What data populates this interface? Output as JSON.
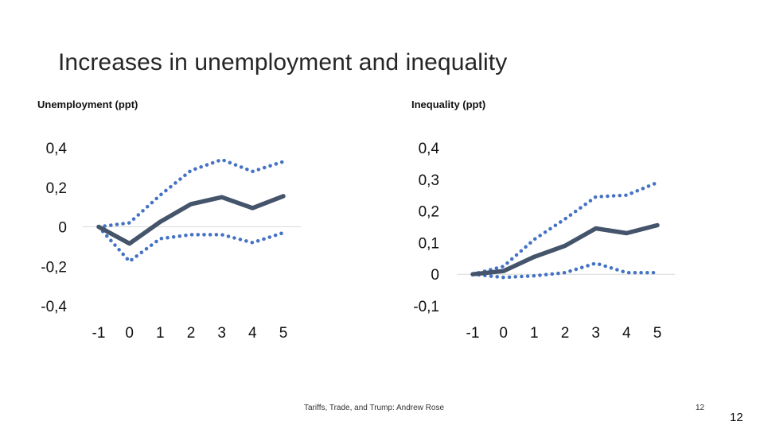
{
  "slide": {
    "title": "Increases in unemployment and inequality",
    "footer": "Tariffs, Trade, and Trump: Andrew Rose",
    "number_small": "12",
    "number_large": "12"
  },
  "colors": {
    "estimate": "#44546a",
    "band": "#4472c4",
    "zero_line": "#d9d9d9"
  },
  "chart_data": [
    {
      "type": "line",
      "title": "Unemployment (ppt)",
      "x": [
        -1,
        0,
        1,
        2,
        3,
        4,
        5
      ],
      "x_tick_labels": [
        "-1",
        "0",
        "1",
        "2",
        "3",
        "4",
        "5"
      ],
      "y_ticks": [
        0.4,
        0.2,
        0,
        -0.2,
        -0.4
      ],
      "y_tick_labels": [
        "0,4",
        "0,2",
        "0",
        "-0,2",
        "-0,4"
      ],
      "ylim": [
        -0.4,
        0.4
      ],
      "grid": false,
      "series": [
        {
          "style": "solid",
          "values": [
            0.0,
            -0.085,
            0.025,
            0.115,
            0.15,
            0.095,
            0.155
          ]
        },
        {
          "style": "dotted",
          "values": [
            0.0,
            0.02,
            0.16,
            0.285,
            0.34,
            0.28,
            0.33
          ]
        },
        {
          "style": "dotted",
          "values": [
            0.0,
            -0.175,
            -0.06,
            -0.04,
            -0.04,
            -0.08,
            -0.03
          ]
        }
      ]
    },
    {
      "type": "line",
      "title": "Inequality (ppt)",
      "x": [
        -1,
        0,
        1,
        2,
        3,
        4,
        5
      ],
      "x_tick_labels": [
        "-1",
        "0",
        "1",
        "2",
        "3",
        "4",
        "5"
      ],
      "y_ticks": [
        0.4,
        0.3,
        0.2,
        0.1,
        0,
        -0.1
      ],
      "y_tick_labels": [
        "0,4",
        "0,3",
        "0,2",
        "0,1",
        "0",
        "-0,1"
      ],
      "ylim": [
        -0.1,
        0.4
      ],
      "grid": false,
      "series": [
        {
          "style": "solid",
          "values": [
            0.0,
            0.01,
            0.055,
            0.09,
            0.145,
            0.13,
            0.155
          ]
        },
        {
          "style": "dotted",
          "values": [
            0.0,
            0.025,
            0.11,
            0.175,
            0.245,
            0.25,
            0.29
          ]
        },
        {
          "style": "dotted",
          "values": [
            0.0,
            -0.01,
            -0.005,
            0.005,
            0.035,
            0.005,
            0.005
          ]
        }
      ]
    }
  ]
}
